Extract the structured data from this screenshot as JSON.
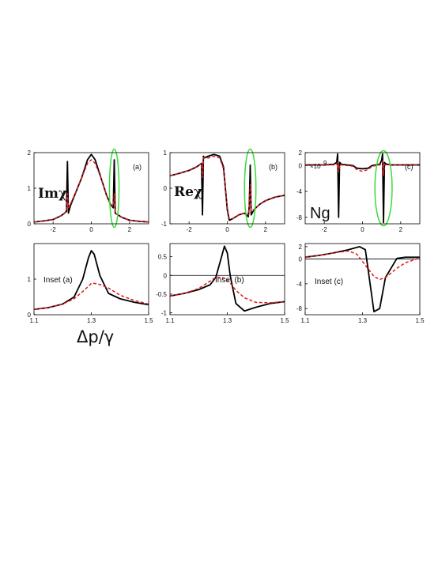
{
  "figure": {
    "xlabel": "Δp/γ",
    "colors": {
      "solid": "#000000",
      "dashed": "#e0191e",
      "ellipse": "#3adb3a",
      "frame": "#000000"
    }
  },
  "chart_data": [
    {
      "id": "a",
      "type": "line",
      "tag": "(a)",
      "ylabel": "Imχ",
      "xlim": [
        -3,
        3
      ],
      "ylim": [
        0,
        2
      ],
      "xticks": [
        -2,
        0,
        2
      ],
      "yticks": [
        0,
        1,
        2
      ],
      "highlight_ellipse": {
        "x": 1.2,
        "y": 1.0,
        "rx": 0.25,
        "ry": 1.1
      },
      "series": [
        {
          "style": "solid",
          "x": [
            -3.0,
            -2.5,
            -2.0,
            -1.6,
            -1.4,
            -1.3,
            -1.25,
            -1.2,
            -1.1,
            -0.8,
            -0.5,
            -0.2,
            0.0,
            0.2,
            0.5,
            0.8,
            1.0,
            1.15,
            1.2,
            1.25,
            1.3,
            1.4,
            1.6,
            2.0,
            2.5,
            3.0
          ],
          "y": [
            0.05,
            0.08,
            0.12,
            0.22,
            0.3,
            0.35,
            1.75,
            0.3,
            0.5,
            0.9,
            1.3,
            1.8,
            1.95,
            1.8,
            1.3,
            0.8,
            0.55,
            0.45,
            1.8,
            0.3,
            0.28,
            0.25,
            0.18,
            0.1,
            0.07,
            0.05
          ]
        },
        {
          "style": "dashed",
          "x": [
            -3.0,
            -2.5,
            -2.0,
            -1.6,
            -1.4,
            -1.3,
            -1.25,
            -1.2,
            -1.1,
            -0.8,
            -0.5,
            -0.2,
            0.0,
            0.2,
            0.5,
            0.8,
            1.0,
            1.15,
            1.2,
            1.25,
            1.3,
            1.4,
            1.6,
            2.0,
            2.5,
            3.0
          ],
          "y": [
            0.05,
            0.08,
            0.12,
            0.22,
            0.3,
            0.38,
            0.85,
            0.45,
            0.55,
            0.9,
            1.3,
            1.7,
            1.8,
            1.7,
            1.3,
            0.8,
            0.55,
            0.5,
            0.85,
            0.35,
            0.28,
            0.25,
            0.18,
            0.1,
            0.07,
            0.05
          ]
        }
      ]
    },
    {
      "id": "b",
      "type": "line",
      "tag": "(b)",
      "ylabel": "Reχ",
      "xlim": [
        -3,
        3
      ],
      "ylim": [
        -1,
        1
      ],
      "xticks": [
        -2,
        0,
        2
      ],
      "yticks": [
        -1,
        0,
        1
      ],
      "highlight_ellipse": {
        "x": 1.2,
        "y": 0.0,
        "rx": 0.3,
        "ry": 1.1
      },
      "series": [
        {
          "style": "solid",
          "x": [
            -3.0,
            -2.5,
            -2.0,
            -1.6,
            -1.35,
            -1.3,
            -1.25,
            -1.2,
            -1.0,
            -0.7,
            -0.4,
            -0.2,
            -0.1,
            0.0,
            0.1,
            0.3,
            0.6,
            0.9,
            1.1,
            1.15,
            1.2,
            1.25,
            1.4,
            1.7,
            2.0,
            2.5,
            3.0
          ],
          "y": [
            0.35,
            0.42,
            0.5,
            0.6,
            0.7,
            -0.75,
            0.9,
            0.85,
            0.9,
            0.95,
            0.9,
            0.6,
            0.0,
            -0.6,
            -0.9,
            -0.85,
            -0.75,
            -0.7,
            -0.8,
            -0.5,
            0.65,
            -0.75,
            -0.6,
            -0.45,
            -0.35,
            -0.25,
            -0.2
          ]
        },
        {
          "style": "dashed",
          "x": [
            -3.0,
            -2.5,
            -2.0,
            -1.6,
            -1.35,
            -1.3,
            -1.25,
            -1.2,
            -1.0,
            -0.7,
            -0.4,
            -0.2,
            -0.1,
            0.0,
            0.1,
            0.3,
            0.6,
            0.9,
            1.1,
            1.15,
            1.2,
            1.25,
            1.4,
            1.7,
            2.0,
            2.5,
            3.0
          ],
          "y": [
            0.35,
            0.42,
            0.5,
            0.6,
            0.7,
            0.3,
            0.85,
            0.85,
            0.85,
            0.9,
            0.85,
            0.55,
            0.0,
            -0.55,
            -0.85,
            -0.85,
            -0.75,
            -0.7,
            -0.75,
            -0.55,
            0.1,
            -0.65,
            -0.6,
            -0.45,
            -0.35,
            -0.25,
            -0.2
          ]
        }
      ]
    },
    {
      "id": "c",
      "type": "line",
      "tag": "(c)",
      "ylabel": "Ng",
      "scale_note": "×10",
      "scale_exp": "9",
      "xlim": [
        -3,
        3
      ],
      "ylim": [
        -9,
        2
      ],
      "xticks": [
        -2,
        0,
        2
      ],
      "yticks": [
        2,
        0,
        -4,
        -8
      ],
      "highlight_ellipse": {
        "x": 1.1,
        "y": -3.5,
        "rx": 0.45,
        "ry": 5.8
      },
      "series": [
        {
          "style": "solid",
          "x": [
            -3.0,
            -2.0,
            -1.5,
            -1.35,
            -1.3,
            -1.25,
            -1.2,
            -1.1,
            -0.5,
            -0.3,
            0.0,
            0.3,
            0.5,
            0.9,
            1.0,
            1.05,
            1.1,
            1.15,
            1.2,
            1.3,
            1.5,
            2.0,
            3.0
          ],
          "y": [
            0.1,
            0.1,
            0.2,
            0.5,
            1.8,
            -8.0,
            0.5,
            0.2,
            0.0,
            -0.4,
            -0.5,
            -0.4,
            0.0,
            0.2,
            0.8,
            1.8,
            -8.8,
            0.5,
            0.3,
            0.2,
            0.1,
            0.1,
            0.1
          ]
        },
        {
          "style": "dashed",
          "x": [
            -3.0,
            -2.0,
            -1.5,
            -1.35,
            -1.3,
            -1.25,
            -1.2,
            -1.1,
            -0.5,
            -0.3,
            0.0,
            0.3,
            0.5,
            0.9,
            1.0,
            1.05,
            1.1,
            1.15,
            1.2,
            1.3,
            1.5,
            2.0,
            3.0
          ],
          "y": [
            0.1,
            0.1,
            0.1,
            0.2,
            0.5,
            -1.0,
            0.1,
            0.1,
            -0.1,
            -0.6,
            -0.9,
            -0.6,
            -0.1,
            0.1,
            0.3,
            0.7,
            -1.5,
            0.2,
            0.1,
            0.1,
            0.1,
            0.1,
            0.1
          ]
        }
      ]
    },
    {
      "id": "inset-a",
      "type": "line",
      "label": "Inset (a)",
      "xlim": [
        1.1,
        1.5
      ],
      "ylim": [
        0,
        2
      ],
      "xticks": [
        1.1,
        1.3,
        1.5
      ],
      "yticks": [
        0,
        1
      ],
      "series": [
        {
          "style": "solid",
          "x": [
            1.1,
            1.15,
            1.2,
            1.24,
            1.27,
            1.29,
            1.3,
            1.31,
            1.33,
            1.36,
            1.4,
            1.45,
            1.5
          ],
          "y": [
            0.15,
            0.2,
            0.3,
            0.5,
            1.0,
            1.6,
            1.8,
            1.7,
            1.1,
            0.6,
            0.45,
            0.35,
            0.28
          ]
        },
        {
          "style": "dashed",
          "x": [
            1.1,
            1.15,
            1.2,
            1.24,
            1.27,
            1.29,
            1.3,
            1.31,
            1.33,
            1.36,
            1.4,
            1.45,
            1.5
          ],
          "y": [
            0.15,
            0.2,
            0.3,
            0.45,
            0.65,
            0.8,
            0.88,
            0.88,
            0.85,
            0.75,
            0.55,
            0.4,
            0.3
          ]
        }
      ]
    },
    {
      "id": "inset-b",
      "type": "line",
      "label": "Inset (b)",
      "xlim": [
        1.1,
        1.5
      ],
      "ylim": [
        -1.05,
        0.85
      ],
      "xticks": [
        1.1,
        1.3,
        1.5
      ],
      "yticks": [
        0.5,
        0,
        -0.5,
        -1
      ],
      "zero_line": true,
      "series": [
        {
          "style": "solid",
          "x": [
            1.1,
            1.15,
            1.2,
            1.24,
            1.26,
            1.28,
            1.29,
            1.3,
            1.31,
            1.33,
            1.36,
            1.4,
            1.45,
            1.5
          ],
          "y": [
            -0.55,
            -0.48,
            -0.38,
            -0.25,
            -0.05,
            0.5,
            0.78,
            0.6,
            0.0,
            -0.75,
            -0.95,
            -0.85,
            -0.75,
            -0.7
          ]
        },
        {
          "style": "dashed",
          "x": [
            1.1,
            1.15,
            1.2,
            1.24,
            1.26,
            1.28,
            1.29,
            1.3,
            1.31,
            1.33,
            1.36,
            1.4,
            1.45,
            1.5
          ],
          "y": [
            -0.55,
            -0.48,
            -0.35,
            -0.15,
            -0.05,
            -0.05,
            -0.08,
            -0.12,
            -0.2,
            -0.4,
            -0.6,
            -0.72,
            -0.73,
            -0.7
          ]
        }
      ]
    },
    {
      "id": "inset-c",
      "type": "line",
      "label": "Inset (c)",
      "xlim": [
        1.1,
        1.5
      ],
      "ylim": [
        -9,
        2.5
      ],
      "xticks": [
        1.1,
        1.3,
        1.5
      ],
      "yticks": [
        2,
        0,
        -4,
        -8
      ],
      "zero_line": true,
      "series": [
        {
          "style": "solid",
          "x": [
            1.1,
            1.15,
            1.2,
            1.25,
            1.29,
            1.31,
            1.34,
            1.36,
            1.38,
            1.42,
            1.45,
            1.5
          ],
          "y": [
            0.3,
            0.6,
            1.0,
            1.5,
            2.0,
            1.5,
            -8.5,
            -8.0,
            -3.0,
            0.1,
            0.3,
            0.3
          ]
        },
        {
          "style": "dashed",
          "x": [
            1.1,
            1.15,
            1.2,
            1.25,
            1.28,
            1.31,
            1.34,
            1.36,
            1.38,
            1.42,
            1.45,
            1.5
          ],
          "y": [
            0.3,
            0.6,
            1.0,
            1.3,
            0.8,
            -1.0,
            -2.8,
            -3.3,
            -3.0,
            -1.5,
            -0.6,
            0.2
          ]
        }
      ]
    }
  ]
}
